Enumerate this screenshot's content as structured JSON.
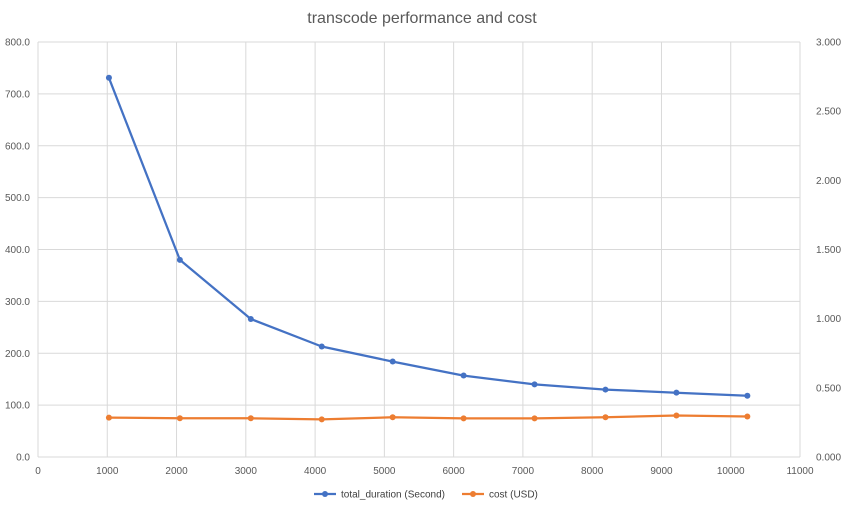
{
  "chart_data": {
    "type": "line",
    "title": "transcode performance and cost",
    "xlabel": "",
    "ylabel": "",
    "y2label": "",
    "xlim": [
      0,
      11000
    ],
    "ylim": [
      0,
      800
    ],
    "y2lim": [
      0,
      3
    ],
    "x_ticks": [
      0,
      1000,
      2000,
      3000,
      4000,
      5000,
      6000,
      7000,
      8000,
      9000,
      10000,
      11000
    ],
    "y_ticks": [
      "0.0",
      "100.0",
      "200.0",
      "300.0",
      "400.0",
      "500.0",
      "600.0",
      "700.0",
      "800.0"
    ],
    "y2_ticks": [
      "0.000",
      "0.500",
      "1.000",
      "1.500",
      "2.000",
      "2.500",
      "3.000"
    ],
    "grid": true,
    "legend_position": "bottom",
    "series": [
      {
        "name": "total_duration (Second)",
        "axis": "left",
        "color": "#4472c4",
        "x": [
          1024,
          2048,
          3072,
          4096,
          5120,
          6144,
          7168,
          8192,
          9216,
          10240
        ],
        "y": [
          731,
          380,
          266,
          213,
          184,
          157,
          140,
          130,
          124,
          118
        ]
      },
      {
        "name": "cost (USD)",
        "axis": "right",
        "color": "#ed7d31",
        "x": [
          1024,
          2048,
          3072,
          4096,
          5120,
          6144,
          7168,
          8192,
          9216,
          10240
        ],
        "y": [
          0.285,
          0.28,
          0.28,
          0.272,
          0.287,
          0.279,
          0.279,
          0.287,
          0.3,
          0.293
        ]
      }
    ]
  }
}
